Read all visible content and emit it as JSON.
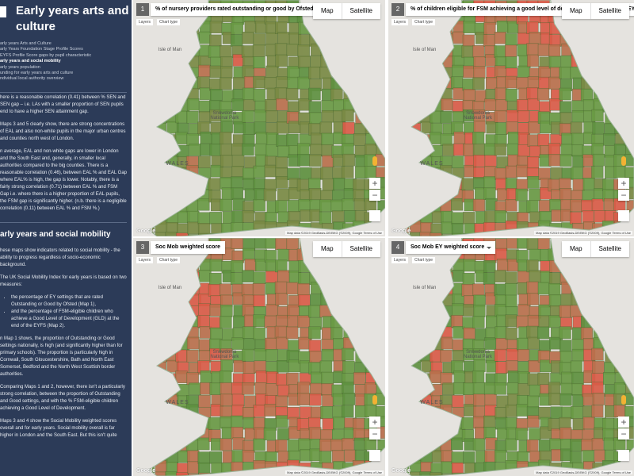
{
  "sidebar": {
    "title": "Early years arts and culture",
    "nav": [
      "arly years Arts and Culture",
      "arly Years Foundation Stage Profile Scores",
      "EYFS Profile Score gaps by pupil characteristic",
      "arly years and social mobility",
      "arly years population",
      "unding for early years arts and culture",
      "ndividual local authority overview"
    ],
    "paragraphs_a": [
      "here is a reasonable correlation (0.41) between % SEN and SEN gap – i.e. LAs with a smaller proportion of SEN pupils end to have a higher SEN attainment gap.",
      "Maps 3 and 5 clearly show, there are strong concentrations of EAL and also non-white pupils in the major urban centres and counties north west of London.",
      "n average, EAL and non-white gaps are lower in London and the South East and, generally, in smaller local authorities compared to the big counties. There is a reasonable correlation (0.46), between EAL % and EAL Gap where EAL% is high, the gap is lower. Notably, there is a fairly strong correlation (0.71) between EAL % and FSM Gap i.e. where there is a higher proportion of EAL pupils, the FSM gap is significantly higher. (n.b. there is a negligible correlation (0.11) between EAL % and FSM %.)"
    ],
    "heading": "arly years and social mobility",
    "paragraphs_b": [
      "hese maps show indicators related to social mobility - the ability to progress regardless of socio-economic background.",
      "The UK Social Mobility Index for early years is based on two measures:"
    ],
    "bullets": [
      "the percentage of EY settings that are rated Outstanding or Good by Ofsted (Map 1),",
      "and the percentage of FSM-eligible children who achieve a Good Level of Development (GLD) at the end of the EYFS (Map 2)."
    ],
    "paragraphs_c": [
      "n Map 1 shows, the proportion of Outstanding or Good settings nationally, is high (and significantly higher than for primary schools). The proportion is particularly high in Cornwall, South Gloucestershire, Bath and North East Somerset, Bedford and the North West Scottish border authorities.",
      "Comparing Maps 1 and 2, however, there isn't a particularly strong correlation, between the proportion of Outstanding and Good settings, and with the % FSM-eligible children achieving a Good Level of Development.",
      "Maps 3 and 4 show the Social Mobility weighted scores overall and for early years. Social mobility overall is far higher in London and the South East. But this isn't quite"
    ]
  },
  "panels": [
    {
      "number": 1,
      "title": "% of nursery providers rated outstanding or good by Ofsted"
    },
    {
      "number": 2,
      "title": "% of children eligible for FSM achieving a good level of development at the end of EYFS"
    },
    {
      "number": 3,
      "title": "Soc Mob weighted score"
    },
    {
      "number": 4,
      "title": "Soc Mob EY weighted score"
    }
  ],
  "map_controls": {
    "map": "Map",
    "satellite": "Satellite",
    "layers": "Layers",
    "chart_type": "Chart type",
    "zoom_in": "+",
    "zoom_out": "−"
  },
  "map_labels": {
    "isle": "Isle of Man",
    "park": "Snowdonia National Park",
    "wales": "WALES"
  },
  "attribution": {
    "logo": "Google",
    "data": "Map data ©2019 GeoBasis-DE/BKG (©2009), Google",
    "terms": "Terms of Use"
  }
}
